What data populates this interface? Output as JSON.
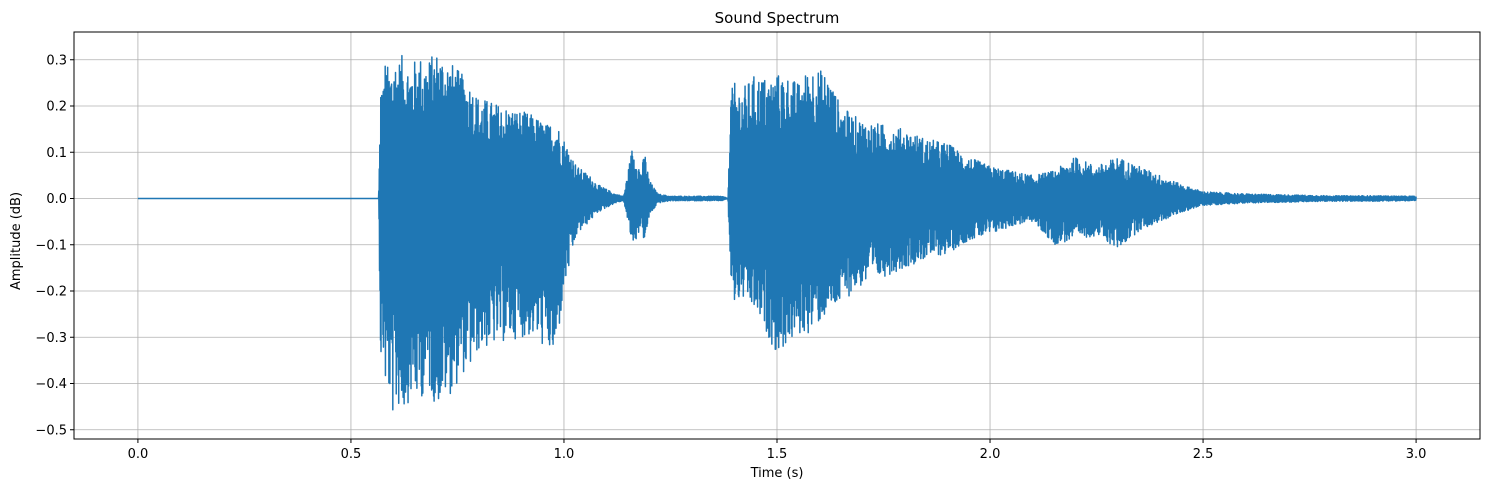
{
  "chart_data": {
    "type": "line",
    "title": "Sound Spectrum",
    "xlabel": "Time (s)",
    "ylabel": "Amplitude (dB)",
    "xlim": [
      -0.15,
      3.15
    ],
    "ylim": [
      -0.52,
      0.36
    ],
    "grid": true,
    "line_color": "#1f77b4",
    "x_ticks": [
      {
        "value": 0.0,
        "label": "0.0"
      },
      {
        "value": 0.5,
        "label": "0.5"
      },
      {
        "value": 1.0,
        "label": "1.0"
      },
      {
        "value": 1.5,
        "label": "1.5"
      },
      {
        "value": 2.0,
        "label": "2.0"
      },
      {
        "value": 2.5,
        "label": "2.5"
      },
      {
        "value": 3.0,
        "label": "3.0"
      }
    ],
    "y_ticks": [
      {
        "value": 0.3,
        "label": "0.3"
      },
      {
        "value": 0.2,
        "label": "0.2"
      },
      {
        "value": 0.1,
        "label": "0.1"
      },
      {
        "value": 0.0,
        "label": "0.0"
      },
      {
        "value": -0.1,
        "label": "−0.1"
      },
      {
        "value": -0.2,
        "label": "−0.2"
      },
      {
        "value": -0.3,
        "label": "−0.3"
      },
      {
        "value": -0.4,
        "label": "−0.4"
      },
      {
        "value": -0.5,
        "label": "−0.5"
      }
    ],
    "series": [
      {
        "x": [
          0.0,
          0.565,
          0.57,
          0.575,
          0.58,
          0.59,
          0.6,
          0.61,
          0.62,
          0.64,
          0.66,
          0.68,
          0.7,
          0.72,
          0.74,
          0.76,
          0.78,
          0.8,
          0.83,
          0.86,
          0.9,
          0.93,
          0.96,
          0.98,
          1.0,
          1.03,
          1.06,
          1.08,
          1.1,
          1.12,
          1.14,
          1.16,
          1.17,
          1.18,
          1.19,
          1.2,
          1.22,
          1.25,
          1.3,
          1.35,
          1.37,
          1.385,
          1.39,
          1.4,
          1.42,
          1.45,
          1.48,
          1.5,
          1.52,
          1.55,
          1.58,
          1.6,
          1.62,
          1.65,
          1.68,
          1.7,
          1.75,
          1.8,
          1.85,
          1.9,
          1.95,
          2.0,
          2.05,
          2.1,
          2.15,
          2.2,
          2.25,
          2.3,
          2.35,
          2.4,
          2.45,
          2.5,
          2.6,
          2.7,
          2.8,
          2.9,
          3.0
        ],
        "ymax": [
          0.0,
          0.0,
          0.26,
          0.24,
          0.3,
          0.28,
          0.31,
          0.3,
          0.31,
          0.29,
          0.31,
          0.3,
          0.32,
          0.31,
          0.29,
          0.27,
          0.25,
          0.22,
          0.21,
          0.2,
          0.19,
          0.18,
          0.16,
          0.17,
          0.13,
          0.07,
          0.05,
          0.03,
          0.02,
          0.01,
          0.005,
          0.11,
          0.09,
          0.06,
          0.1,
          0.04,
          0.01,
          0.005,
          0.005,
          0.005,
          0.005,
          0.0,
          0.23,
          0.25,
          0.24,
          0.27,
          0.26,
          0.27,
          0.27,
          0.25,
          0.29,
          0.28,
          0.27,
          0.2,
          0.18,
          0.17,
          0.16,
          0.15,
          0.13,
          0.12,
          0.09,
          0.07,
          0.06,
          0.05,
          0.06,
          0.09,
          0.07,
          0.09,
          0.07,
          0.05,
          0.03,
          0.015,
          0.01,
          0.008,
          0.006,
          0.006,
          0.005
        ],
        "ymin": [
          0.0,
          0.0,
          -0.37,
          -0.33,
          -0.41,
          -0.43,
          -0.48,
          -0.45,
          -0.47,
          -0.43,
          -0.44,
          -0.41,
          -0.45,
          -0.43,
          -0.42,
          -0.38,
          -0.37,
          -0.33,
          -0.32,
          -0.31,
          -0.3,
          -0.3,
          -0.33,
          -0.35,
          -0.2,
          -0.08,
          -0.05,
          -0.03,
          -0.02,
          -0.01,
          -0.005,
          -0.1,
          -0.09,
          -0.06,
          -0.1,
          -0.04,
          -0.01,
          -0.005,
          -0.005,
          -0.005,
          -0.005,
          0.0,
          -0.17,
          -0.23,
          -0.22,
          -0.25,
          -0.3,
          -0.34,
          -0.32,
          -0.3,
          -0.29,
          -0.27,
          -0.25,
          -0.23,
          -0.2,
          -0.19,
          -0.17,
          -0.15,
          -0.13,
          -0.12,
          -0.09,
          -0.08,
          -0.06,
          -0.05,
          -0.1,
          -0.09,
          -0.08,
          -0.11,
          -0.07,
          -0.05,
          -0.03,
          -0.015,
          -0.01,
          -0.008,
          -0.006,
          -0.006,
          -0.005
        ]
      }
    ]
  }
}
